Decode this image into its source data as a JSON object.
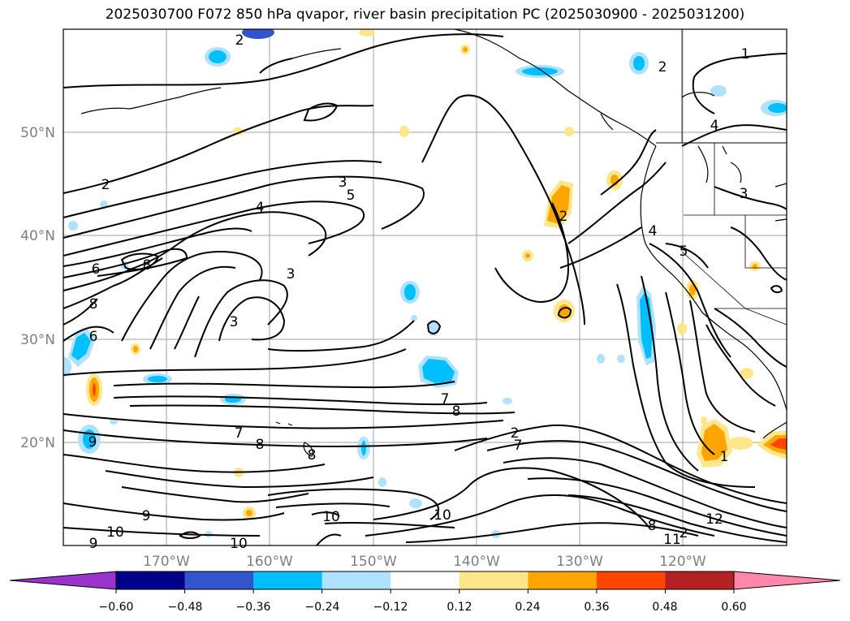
{
  "title": "2025030700 F072 850 hPa qvapor, river basin precipitation PC (2025030900 - 2025031200)",
  "map": {
    "lon_range": [
      -180,
      -110
    ],
    "lat_range": [
      10,
      60
    ],
    "lon_ticks": [
      "170°W",
      "160°W",
      "150°W",
      "140°W",
      "130°W",
      "120°W"
    ],
    "lat_ticks": [
      "50°N",
      "40°N",
      "30°N",
      "20°N"
    ],
    "grid": true,
    "contour_labels": [
      "2",
      "1",
      "2",
      "4",
      "2",
      "3",
      "5",
      "4",
      "2",
      "6",
      "8",
      "3",
      "4",
      "3",
      "8",
      "6",
      "3",
      "5",
      "7",
      "8",
      "7",
      "8",
      "9",
      "8",
      "2",
      "7",
      "9",
      "10",
      "9",
      "10",
      "10",
      "10",
      "8",
      "12",
      "11",
      "2",
      "1"
    ]
  },
  "colorbar": {
    "ticks": [
      "−0.60",
      "−0.48",
      "−0.36",
      "−0.24",
      "−0.12",
      "0.12",
      "0.24",
      "0.36",
      "0.48",
      "0.60"
    ],
    "colors": [
      "#9933cc",
      "#00008b",
      "#3355cc",
      "#00bfff",
      "#b0e2ff",
      "#ffffff",
      "#ffe68a",
      "#ffa500",
      "#ff4500",
      "#b22222",
      "#ff88aa"
    ]
  }
}
